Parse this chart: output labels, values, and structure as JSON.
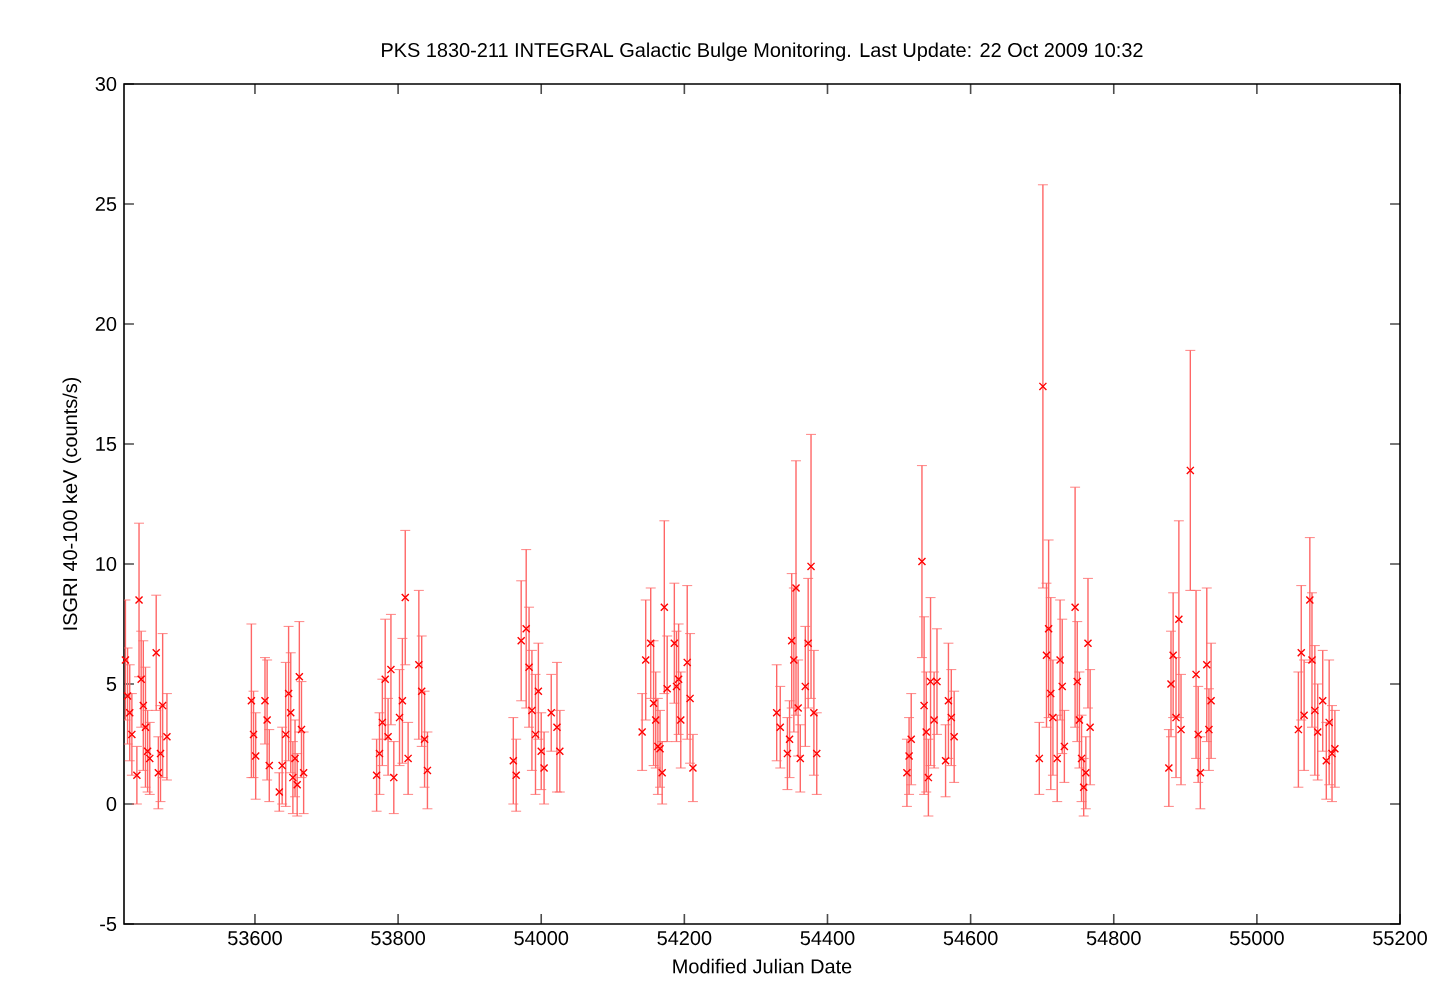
{
  "chart_data": {
    "type": "scatter",
    "title": "PKS 1830-211   INTEGRAL Galactic Bulge Monitoring.  Last Update: 22 Oct 2009 10:32",
    "xlabel": "Modified Julian Date",
    "ylabel": "ISGRI 40-100 keV (counts/s)",
    "xlim": [
      53417,
      55200
    ],
    "xticks": [
      53600,
      53800,
      54000,
      54200,
      54400,
      54600,
      54800,
      55000,
      55200
    ],
    "ylim": [
      -5,
      30
    ],
    "yticks": [
      -5,
      0,
      5,
      10,
      15,
      20,
      25,
      30
    ],
    "grid": false,
    "marker": "cross",
    "series": [
      {
        "color": "#ff0000",
        "x": [
          53419,
          53422,
          53425,
          53428,
          53438,
          53441,
          53444,
          53447,
          53450,
          53453,
          53435,
          53462,
          53471,
          53465,
          53477,
          53468,
          53595,
          53598,
          53601,
          53614,
          53617,
          53620,
          53638,
          53643,
          53647,
          53650,
          53653,
          53656,
          53659,
          53662,
          53665,
          53668,
          53634,
          53770,
          53774,
          53778,
          53782,
          53790,
          53786,
          53794,
          53802,
          53806,
          53810,
          53814,
          53829,
          53833,
          53837,
          53841,
          53961,
          53965,
          53972,
          53979,
          53983,
          53987,
          53996,
          53992,
          54000,
          54004,
          54014,
          54022,
          54026,
          54141,
          54146,
          54153,
          54157,
          54160,
          54163,
          54166,
          54169,
          54172,
          54176,
          54186,
          54189,
          54192,
          54195,
          54204,
          54208,
          54212,
          54329,
          54334,
          54350,
          54356,
          54359,
          54353,
          54347,
          54344,
          54362,
          54369,
          54373,
          54377,
          54381,
          54385,
          54514,
          54517,
          54511,
          54532,
          54535,
          54538,
          54541,
          54544,
          54549,
          54553,
          54565,
          54569,
          54573,
          54577,
          54701,
          54696,
          54709,
          54706,
          54712,
          54715,
          54721,
          54725,
          54728,
          54731,
          54746,
          54749,
          54752,
          54755,
          54758,
          54761,
          54764,
          54767,
          54880,
          54883,
          54877,
          54887,
          54891,
          54894,
          54907,
          54915,
          54918,
          54921,
          54930,
          54936,
          54933,
          55062,
          55058,
          55066,
          55074,
          55077,
          55081,
          55085,
          55092,
          55101,
          55097,
          55105,
          55109
        ],
        "values": [
          6.0,
          4.5,
          3.8,
          2.9,
          8.5,
          5.2,
          4.1,
          3.2,
          2.2,
          1.9,
          1.2,
          6.3,
          4.1,
          1.3,
          2.8,
          2.1,
          4.3,
          2.9,
          2.0,
          4.3,
          3.5,
          1.6,
          1.6,
          2.9,
          4.6,
          3.8,
          1.1,
          1.9,
          0.8,
          5.3,
          3.1,
          1.3,
          0.5,
          1.2,
          2.1,
          3.4,
          5.2,
          5.6,
          2.8,
          1.1,
          3.6,
          4.3,
          8.6,
          1.9,
          5.8,
          4.7,
          2.7,
          1.4,
          1.8,
          1.2,
          6.8,
          7.3,
          5.7,
          3.9,
          4.7,
          2.9,
          2.2,
          1.5,
          3.8,
          3.2,
          2.2,
          3.0,
          6.0,
          6.7,
          4.2,
          3.5,
          2.4,
          2.3,
          1.3,
          8.2,
          4.8,
          6.7,
          4.9,
          5.2,
          3.5,
          5.9,
          4.4,
          1.5,
          3.8,
          3.2,
          6.8,
          9.0,
          4.0,
          6.0,
          2.7,
          2.1,
          1.9,
          4.9,
          6.7,
          9.9,
          3.8,
          2.1,
          2.0,
          2.7,
          1.3,
          10.1,
          4.1,
          3.0,
          1.1,
          5.1,
          3.5,
          5.1,
          1.8,
          4.3,
          3.6,
          2.8,
          17.4,
          1.9,
          7.3,
          6.2,
          4.6,
          3.6,
          1.9,
          6.0,
          4.9,
          2.4,
          8.2,
          5.1,
          3.5,
          1.9,
          0.7,
          1.3,
          6.7,
          3.2,
          5.0,
          6.2,
          1.5,
          3.6,
          7.7,
          3.1,
          13.9,
          5.4,
          2.9,
          1.3,
          5.8,
          4.3,
          3.1,
          6.3,
          3.1,
          3.7,
          8.5,
          6.0,
          3.9,
          3.0,
          4.3,
          3.4,
          1.8,
          2.1,
          2.3
        ],
        "errors": [
          2.5,
          2.0,
          2.0,
          1.7,
          3.2,
          2.0,
          2.7,
          2.5,
          1.7,
          1.5,
          1.2,
          2.4,
          3.0,
          1.5,
          1.8,
          2.0,
          3.2,
          1.8,
          1.8,
          1.8,
          2.5,
          1.5,
          1.6,
          3.0,
          2.8,
          2.5,
          1.5,
          1.6,
          1.3,
          2.3,
          2.0,
          1.7,
          0.8,
          1.5,
          1.7,
          1.8,
          2.5,
          2.3,
          1.6,
          1.5,
          2.0,
          2.6,
          2.8,
          1.5,
          3.1,
          2.3,
          2.0,
          1.6,
          1.8,
          1.5,
          2.5,
          3.3,
          2.5,
          2.5,
          2.0,
          2.5,
          1.6,
          1.5,
          1.6,
          2.7,
          1.7,
          1.6,
          2.5,
          2.3,
          2.6,
          2.0,
          2.0,
          1.6,
          1.3,
          3.6,
          2.2,
          2.5,
          2.3,
          2.3,
          2.0,
          3.2,
          2.7,
          1.4,
          2.0,
          1.7,
          2.8,
          5.3,
          2.0,
          3.0,
          1.6,
          1.5,
          1.4,
          2.5,
          2.7,
          5.5,
          2.6,
          1.7,
          1.6,
          1.9,
          1.4,
          4.0,
          3.7,
          2.5,
          1.6,
          3.5,
          2.0,
          2.2,
          1.5,
          2.4,
          2.0,
          1.9,
          8.4,
          1.5,
          3.7,
          3.0,
          4.0,
          2.4,
          1.8,
          2.5,
          2.8,
          1.5,
          5.0,
          2.5,
          2.0,
          1.8,
          1.2,
          1.5,
          2.7,
          2.4,
          2.2,
          2.6,
          1.6,
          2.5,
          4.1,
          2.3,
          5.0,
          3.5,
          2.0,
          1.5,
          3.2,
          2.4,
          1.7,
          2.8,
          2.4,
          2.3,
          2.6,
          2.8,
          2.7,
          2.0,
          2.1,
          2.6,
          1.6,
          2.0,
          1.6
        ]
      }
    ]
  }
}
